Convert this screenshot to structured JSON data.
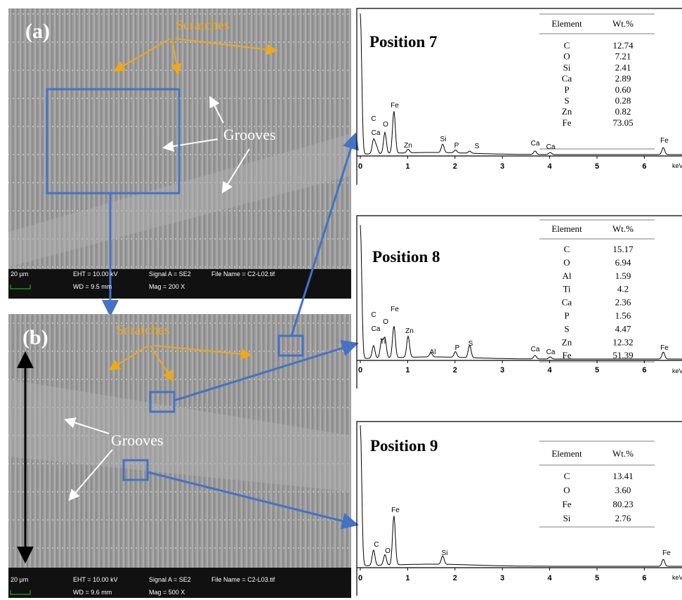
{
  "panels": [
    {
      "label": "(a)",
      "scratches": "Scratches",
      "grooves": "Grooves",
      "info": {
        "scale": "20 µm",
        "eht": "EHT = 10.00 kV",
        "wd": "WD =  9.5 mm",
        "signal": "Signal A = SE2",
        "mag": "Mag =   200 X",
        "file": "File Name = C2-L02.tif"
      }
    },
    {
      "label": "(b)",
      "scratches": "Scratches",
      "grooves": "Grooves",
      "info": {
        "scale": "20 µm",
        "eht": "EHT = 10.00 kV",
        "wd": "WD =  9.6 mm",
        "signal": "Signal A = SE2",
        "mag": "Mag =   500 X",
        "file": "File Name = C2-L03.tif"
      }
    }
  ],
  "spectra": [
    {
      "title": "Position 7",
      "header": [
        "Element",
        "Wt.%"
      ],
      "rows": [
        [
          "C",
          "12.74"
        ],
        [
          "O",
          "7.21"
        ],
        [
          "Si",
          "2.41"
        ],
        [
          "Ca",
          "2.89"
        ],
        [
          "P",
          "0.60"
        ],
        [
          "S",
          "0.28"
        ],
        [
          "Zn",
          "0.82"
        ],
        [
          "Fe",
          "73.05"
        ]
      ],
      "peaks": [
        "C",
        "Ca",
        "O",
        "Fe",
        "Zn",
        "Si",
        "P",
        "S",
        "Ca",
        "Ca",
        "Fe"
      ],
      "x_ticks": [
        "0",
        "1",
        "2",
        "3",
        "4",
        "5",
        "6"
      ],
      "x_unit": "keV"
    },
    {
      "title": "Position 8",
      "header": [
        "Element",
        "Wt.%"
      ],
      "rows": [
        [
          "C",
          "15.17"
        ],
        [
          "O",
          "6.94"
        ],
        [
          "Al",
          "1.59"
        ],
        [
          "Ti",
          "4.2"
        ],
        [
          "Ca",
          "2.36"
        ],
        [
          "P",
          "1.56"
        ],
        [
          "S",
          "4.47"
        ],
        [
          "Zn",
          "12.32"
        ],
        [
          "Fe",
          "51.39"
        ]
      ],
      "peaks": [
        "C",
        "O",
        "Fe",
        "Ca",
        "Ti",
        "Zn",
        "Al",
        "P",
        "S",
        "Ca",
        "Ca",
        "Fe"
      ],
      "x_ticks": [
        "0",
        "1",
        "2",
        "3",
        "4",
        "5",
        "6"
      ],
      "x_unit": "keV"
    },
    {
      "title": "Position 9",
      "header": [
        "Element",
        "Wt.%"
      ],
      "rows": [
        [
          "C",
          "13.41"
        ],
        [
          "O",
          "3.60"
        ],
        [
          "Fe",
          "80.23"
        ],
        [
          "Si",
          "2.76"
        ]
      ],
      "peaks": [
        "Fe",
        "C",
        "O",
        "Si",
        "Fe"
      ],
      "x_ticks": [
        "0",
        "1",
        "2",
        "3",
        "4",
        "5",
        "6"
      ],
      "x_unit": "keV"
    }
  ]
}
